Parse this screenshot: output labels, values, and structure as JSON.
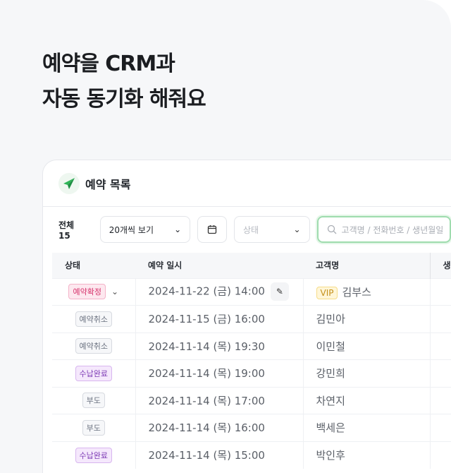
{
  "hero": {
    "line1": "예약을 CRM과",
    "line2": "자동 동기화 해줘요"
  },
  "card": {
    "title": "예약 목록"
  },
  "toolbar": {
    "total": "전체 15",
    "page_size": "20개씩 보기",
    "status_placeholder": "상태",
    "search_placeholder": "고객명 / 전화번호 / 생년월일"
  },
  "table": {
    "headers": [
      "상태",
      "예약 일시",
      "고객명",
      "생"
    ],
    "rows": [
      {
        "status": "예약확정",
        "datetime": "2024-11-22 (금) 14:00",
        "vip": "VIP",
        "name": "김부스"
      },
      {
        "status": "예약취소",
        "datetime": "2024-11-15 (금) 16:00",
        "name": "김민아"
      },
      {
        "status": "예약취소",
        "datetime": "2024-11-14 (목) 19:30",
        "name": "이민철"
      },
      {
        "status": "수납완료",
        "datetime": "2024-11-14 (목) 19:00",
        "name": "강민희"
      },
      {
        "status": "부도",
        "datetime": "2024-11-14 (목) 17:00",
        "name": "차연지"
      },
      {
        "status": "부도",
        "datetime": "2024-11-14 (목) 16:00",
        "name": "백세은"
      },
      {
        "status": "수납완료",
        "datetime": "2024-11-14 (목) 15:00",
        "name": "박인후"
      }
    ]
  },
  "colors": {
    "confirmed": "#d6336c",
    "cancelled": "#6b7280",
    "paid": "#7e3bb5",
    "noshow": "#6b7280",
    "accent": "#2fb457"
  }
}
